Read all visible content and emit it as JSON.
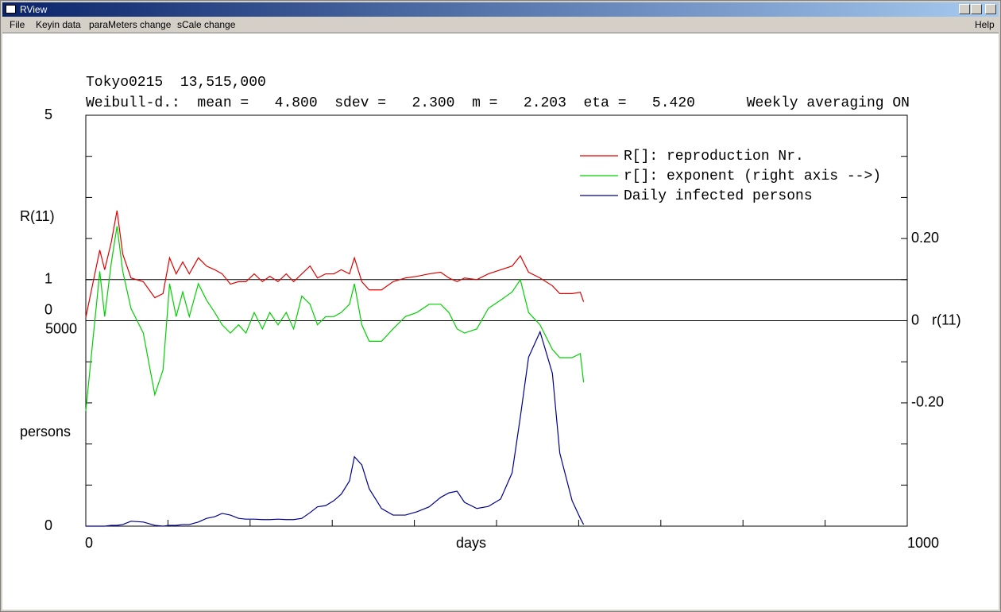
{
  "window": {
    "title": "RView",
    "menu": [
      "File",
      "Keyin data",
      "paraMeters change",
      "sCale change"
    ],
    "help": "Help"
  },
  "chart_data": {
    "type": "line",
    "title": "Tokyo0215  13,515,000",
    "subtitle": "Weibull-d.:  mean =   4.800  sdev =   2.300  m =   2.203  eta =   5.420      Weekly averaging ON",
    "xlabel": "days",
    "ylabel": "R(11)",
    "y2label": "r(11)",
    "persons_label": "persons",
    "xlim": [
      0,
      1000
    ],
    "xticks": [
      0,
      1000
    ],
    "xminor": [
      100,
      200,
      300,
      400,
      500,
      600,
      700,
      800,
      900
    ],
    "ylim": [
      -5,
      5
    ],
    "yticks": [
      0,
      1,
      5
    ],
    "yminor": [
      -4,
      -3,
      -2,
      -1,
      2,
      3,
      4
    ],
    "y2lim": [
      -0.5,
      0.5
    ],
    "y2ticks": [
      {
        "value": 0.2,
        "label": "0.20"
      },
      {
        "value": 0,
        "label": "0"
      },
      {
        "value": -0.2,
        "label": "-0.20"
      }
    ],
    "y2minor": [
      -0.4,
      -0.3,
      -0.1,
      0.1,
      0.3,
      0.4
    ],
    "persons_lim": [
      0,
      5000
    ],
    "persons_ticks": [
      0,
      5000
    ],
    "hlines": [
      1,
      0
    ],
    "x": [
      0,
      17,
      23,
      31,
      38,
      45,
      55,
      70,
      84,
      94,
      102,
      110,
      118,
      126,
      137,
      147,
      157,
      166,
      176,
      186,
      195,
      205,
      215,
      224,
      234,
      244,
      253,
      263,
      273,
      282,
      292,
      302,
      311,
      321,
      327,
      336,
      345,
      360,
      374,
      389,
      403,
      418,
      432,
      442,
      452,
      461,
      476,
      490,
      505,
      519,
      529,
      539,
      553,
      568,
      577,
      592,
      602,
      606
    ],
    "series": [
      {
        "name": "R[]: reproduction Nr.",
        "color": "#e00000",
        "axis": "y",
        "values": [
          0.08,
          1.72,
          1.24,
          1.91,
          2.68,
          1.62,
          1.04,
          0.95,
          0.56,
          0.66,
          1.53,
          1.14,
          1.43,
          1.14,
          1.53,
          1.33,
          1.24,
          1.14,
          0.89,
          0.95,
          0.95,
          1.14,
          0.95,
          1.08,
          0.95,
          1.14,
          0.95,
          1.14,
          1.33,
          1.04,
          1.14,
          1.14,
          1.24,
          1.14,
          1.53,
          0.95,
          0.75,
          0.75,
          0.95,
          1.04,
          1.08,
          1.14,
          1.18,
          1.04,
          0.95,
          1.04,
          1.0,
          1.14,
          1.24,
          1.33,
          1.58,
          1.18,
          1.04,
          0.85,
          0.66,
          0.66,
          0.69,
          0.46
        ]
      },
      {
        "name": "r[]: exponent (right axis -->)",
        "color": "#00d000",
        "axis": "y2",
        "values": [
          -0.22,
          0.12,
          0.01,
          0.14,
          0.23,
          0.12,
          0.03,
          -0.03,
          -0.18,
          -0.12,
          0.09,
          0.01,
          0.07,
          0.01,
          0.09,
          0.05,
          0.02,
          -0.01,
          -0.03,
          -0.01,
          -0.03,
          0.02,
          -0.02,
          0.02,
          -0.01,
          0.02,
          -0.02,
          0.06,
          0.04,
          -0.01,
          0.01,
          0.01,
          0.02,
          0.04,
          0.09,
          -0.01,
          -0.05,
          -0.05,
          -0.02,
          0.01,
          0.02,
          0.04,
          0.04,
          0.02,
          -0.02,
          -0.03,
          -0.02,
          0.03,
          0.05,
          0.07,
          0.1,
          0.02,
          -0.01,
          -0.07,
          -0.09,
          -0.09,
          -0.08,
          -0.15
        ]
      },
      {
        "name": "Daily infected persons",
        "color": "#000090",
        "axis": "persons",
        "values": [
          0,
          0,
          0,
          20,
          20,
          40,
          120,
          100,
          20,
          0,
          20,
          20,
          40,
          40,
          100,
          190,
          230,
          310,
          270,
          190,
          170,
          170,
          160,
          160,
          170,
          160,
          160,
          190,
          330,
          470,
          500,
          620,
          780,
          1100,
          1690,
          1490,
          910,
          430,
          270,
          270,
          350,
          470,
          700,
          810,
          850,
          580,
          430,
          480,
          660,
          1300,
          2660,
          4110,
          4730,
          3720,
          1780,
          620,
          190,
          40
        ]
      }
    ]
  }
}
